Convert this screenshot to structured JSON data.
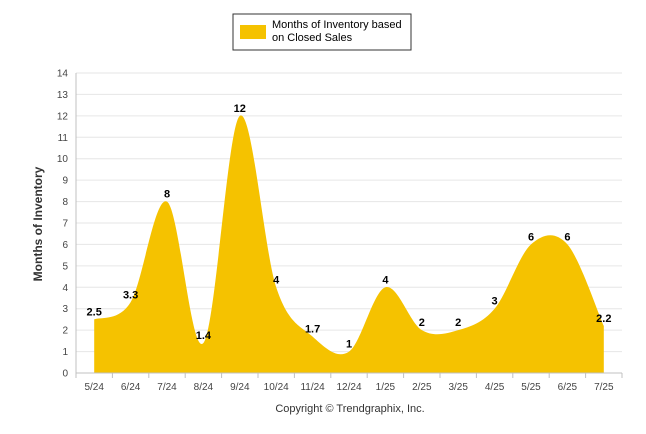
{
  "chart_data": {
    "type": "area",
    "categories": [
      "5/24",
      "6/24",
      "7/24",
      "8/24",
      "9/24",
      "10/24",
      "11/24",
      "12/24",
      "1/25",
      "2/25",
      "3/25",
      "4/25",
      "5/25",
      "6/25",
      "7/25"
    ],
    "series": [
      {
        "name": "Months of Inventory based on Closed Sales",
        "values": [
          2.5,
          3.3,
          8,
          1.4,
          12,
          4,
          1.7,
          1,
          4,
          2,
          2,
          3,
          6,
          6,
          2.2
        ],
        "data_labels": [
          "2.5",
          "3.3",
          "8",
          "1.4",
          "12",
          "4",
          "1.7",
          "1",
          "4",
          "2",
          "2",
          "3",
          "6",
          "6",
          "2.2"
        ],
        "color": "#f5c200"
      }
    ],
    "ylabel": "Months of Inventory",
    "xlabel": "",
    "ylim": [
      0,
      14
    ],
    "yticks": [
      0,
      1,
      2,
      3,
      4,
      5,
      6,
      7,
      8,
      9,
      10,
      11,
      12,
      13,
      14
    ],
    "grid": true,
    "legend_position": "top-center",
    "smooth": true
  },
  "footer": {
    "copyright": "Copyright © Trendgraphix, Inc."
  },
  "colors": {
    "area_fill": "#f5c200",
    "grid": "#e6e6e6",
    "axis": "#c0c0c0"
  }
}
